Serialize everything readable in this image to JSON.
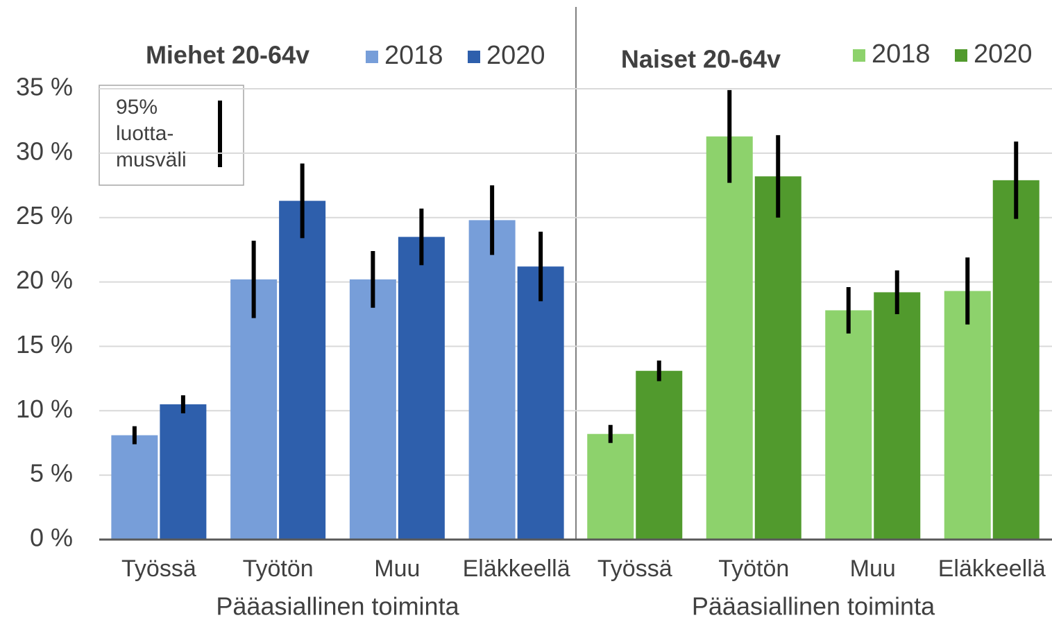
{
  "chart_data": [
    {
      "type": "bar",
      "title": "Miehet 20-64v",
      "xlabel": "Pääasiallinen toiminta",
      "categories": [
        "Työssä",
        "Työtön",
        "Muu",
        "Eläkkeellä"
      ],
      "series": [
        {
          "name": "2018",
          "color": "#779ed9",
          "values": [
            8.1,
            20.2,
            20.2,
            24.8
          ],
          "errors": [
            0.7,
            3.0,
            2.2,
            2.7
          ]
        },
        {
          "name": "2020",
          "color": "#2e5fac",
          "values": [
            10.5,
            26.3,
            23.5,
            21.2
          ],
          "errors": [
            0.7,
            2.9,
            2.2,
            2.7
          ]
        }
      ],
      "ylim": [
        0,
        35
      ],
      "yticks": [
        {
          "value": 0,
          "label": "0 %"
        },
        {
          "value": 5,
          "label": "5 %"
        },
        {
          "value": 10,
          "label": "10 %"
        },
        {
          "value": 15,
          "label": "15 %"
        },
        {
          "value": 20,
          "label": "20 %"
        },
        {
          "value": 25,
          "label": "25 %"
        },
        {
          "value": 30,
          "label": "30 %"
        },
        {
          "value": 35,
          "label": "35 %"
        }
      ],
      "grid": true,
      "annotation": [
        "95%",
        "luotta-",
        "musväli"
      ]
    },
    {
      "type": "bar",
      "title": "Naiset 20-64v",
      "xlabel": "Pääasiallinen toiminta",
      "categories": [
        "Työssä",
        "Työtön",
        "Muu",
        "Eläkkeellä"
      ],
      "series": [
        {
          "name": "2018",
          "color": "#8dd26c",
          "values": [
            8.2,
            31.3,
            17.8,
            19.3
          ],
          "errors": [
            0.7,
            3.6,
            1.8,
            2.6
          ]
        },
        {
          "name": "2020",
          "color": "#519a2d",
          "values": [
            13.1,
            28.2,
            19.2,
            27.9
          ],
          "errors": [
            0.8,
            3.2,
            1.7,
            3.0
          ]
        }
      ],
      "ylim": [
        0,
        35
      ],
      "grid": true
    }
  ]
}
